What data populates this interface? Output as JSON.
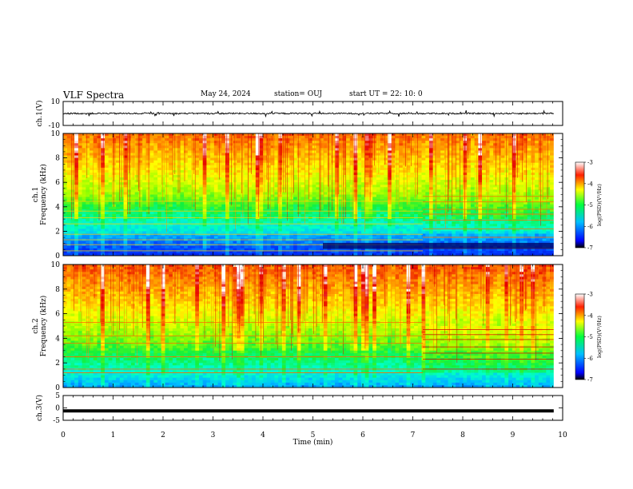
{
  "header": {
    "title": "VLF Spectra",
    "date": "May 24, 2024",
    "station": "station= OUJ",
    "start_time": "start  UT  =   22: 10: 0"
  },
  "chart_data": [
    {
      "type": "line",
      "panel": "ch1-waveform",
      "ylabel": "ch.1(V)",
      "ylim": [
        -10,
        10
      ],
      "y_ticks": [
        "10",
        "-10"
      ],
      "xlim": [
        0,
        10
      ],
      "data_extent_x": [
        0,
        9.82
      ],
      "baseline": 0,
      "description_values": {
        "typical_amplitude": 0.5,
        "spike_amplitude": 2.5
      }
    },
    {
      "type": "heatmap",
      "panel": "ch1-spectrogram",
      "ylabel": "ch.1",
      "ylabel2": "Frequency (kHz)",
      "ylim": [
        0,
        10
      ],
      "y_ticks": [
        "0",
        "2",
        "4",
        "6",
        "8",
        "10"
      ],
      "xlim": [
        0,
        10
      ],
      "data_extent_x": [
        0,
        9.82
      ],
      "colorbar": {
        "label": "log(PSD)(V²/Hz)",
        "range": [
          -7,
          -3
        ],
        "ticks": [
          "-3",
          "-4",
          "-5",
          "-6",
          "-7"
        ]
      },
      "line_emissions_khz_early": [
        0.4,
        0.9,
        1.3,
        1.75,
        2.6,
        3.1,
        3.65,
        4.45
      ],
      "line_emissions_khz_late": [
        0.6,
        1.5,
        2.2,
        2.9,
        3.4,
        3.8,
        4.4,
        4.85
      ],
      "regime_change_min": 7.2
    },
    {
      "type": "heatmap",
      "panel": "ch2-spectrogram",
      "ylabel": "ch.2",
      "ylabel2": "Frequency (kHz)",
      "ylim": [
        0,
        10
      ],
      "y_ticks": [
        "0",
        "2",
        "4",
        "6",
        "8",
        "10"
      ],
      "xlim": [
        0,
        10
      ],
      "data_extent_x": [
        0,
        9.82
      ],
      "colorbar": {
        "label": "log(PSD)(V²/Hz)",
        "range": [
          -7,
          -3
        ],
        "ticks": [
          "-3",
          "-4",
          "-5",
          "-6",
          "-7"
        ]
      },
      "line_emissions_khz_early": [
        1.2,
        1.5,
        2.5,
        3.6,
        4.2,
        5.3
      ],
      "line_emissions_khz_late": [
        1.5,
        2.3,
        2.8,
        3.3,
        3.9,
        4.3,
        4.7
      ],
      "regime_change_min": 7.2
    },
    {
      "type": "line",
      "panel": "ch3-waveform",
      "ylabel": "ch.3(V)",
      "ylim": [
        -5,
        5
      ],
      "y_ticks": [
        "5",
        "0",
        "-5"
      ],
      "xlim": [
        0,
        10
      ],
      "data_extent_x": [
        0,
        9.82
      ],
      "baseline": -1.2
    }
  ],
  "x_axis": {
    "label": "Time  (min)",
    "ticks": [
      "0",
      "1",
      "2",
      "3",
      "4",
      "5",
      "6",
      "7",
      "8",
      "9",
      "10"
    ]
  },
  "colors": {
    "colormap": [
      "#00008b",
      "#0000ff",
      "#0080ff",
      "#00ffff",
      "#00ff80",
      "#80ff00",
      "#ffff00",
      "#ff8000",
      "#ff0000",
      "#ffffff"
    ],
    "axes": "#000000"
  }
}
